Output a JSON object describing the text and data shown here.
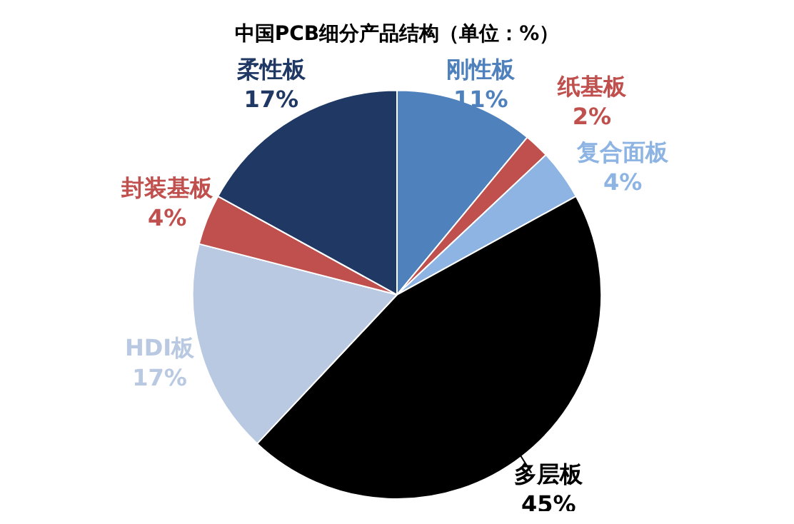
{
  "chart_data": {
    "type": "pie",
    "title": "中国PCB细分产品结构（单位：%）",
    "categories": [
      "刚性板",
      "纸基板",
      "复合面板",
      "多层板",
      "HDI板",
      "封装基板",
      "柔性板"
    ],
    "values": [
      11,
      2,
      4,
      45,
      17,
      4,
      17
    ],
    "value_labels": [
      "11%",
      "2%",
      "4%",
      "45%",
      "17%",
      "4%",
      "17%"
    ],
    "colors": [
      "#4f81bd",
      "#c0504d",
      "#8db4e2",
      "#000000",
      "#b9c9e2",
      "#c0504d",
      "#1f3864"
    ],
    "legend": false
  }
}
